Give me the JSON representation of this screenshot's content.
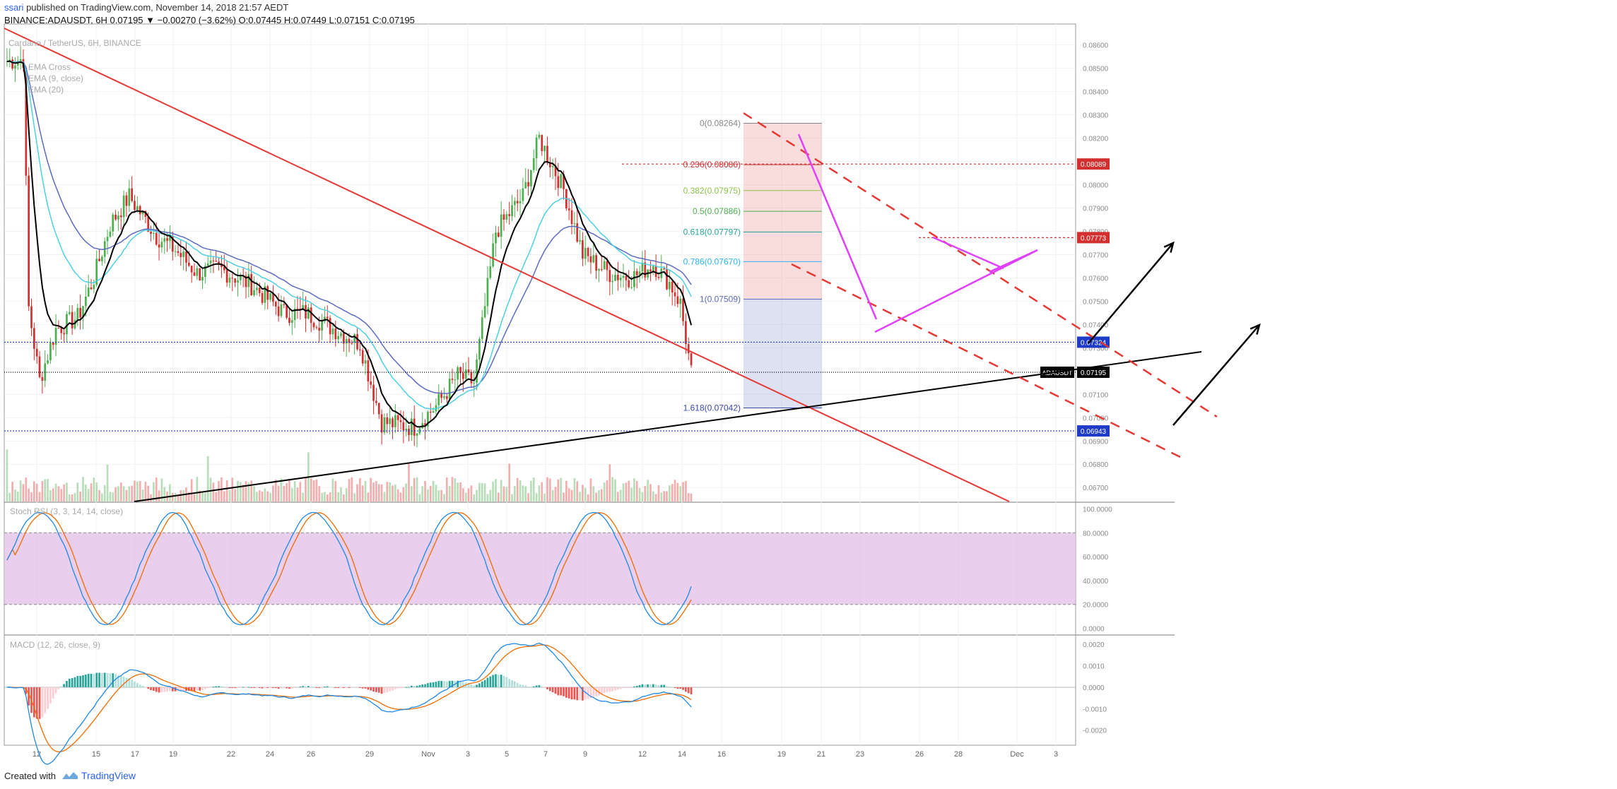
{
  "header": {
    "user": "ssari",
    "published": " published on TradingView.com, November 14, 2018 21:57 AEDT",
    "ohlc": "BINANCE:ADAUSDT, 6H  0.07195 ▼ −0.00270 (−3.62%) O:0.07445 H:0.07449 L:0.07151 C:0.07195"
  },
  "overlay_labels": {
    "symbol": "Cardano / TetherUS, 6H, BINANCE",
    "ema_cross": "EMA Cross",
    "ema9": "EMA (9, close)",
    "ema20": "EMA (20)",
    "stoch": "Stoch RSI (3, 3, 14, 14, close)",
    "macd": "MACD (12, 26, close, 9)"
  },
  "footer": {
    "created_with": "Created with",
    "brand": "TradingView"
  },
  "colors": {
    "up": "#4caf50",
    "down": "#d32f2f",
    "ema_fast": "#000000",
    "ema_cyan": "#4dd0e1",
    "ema_blue": "#5c6bc0",
    "trend_red": "#e53935",
    "pennant": "#e040fb",
    "stoch_band": "#e1bee7"
  },
  "chart_data": [
    {
      "type": "candlestick",
      "title": "Cardano / TetherUS, 6H, BINANCE",
      "y_axis_ticks": [
        "0.08600",
        "0.08500",
        "0.08400",
        "0.08300",
        "0.08200",
        "0.08100",
        "0.08000",
        "0.07900",
        "0.07800",
        "0.07700",
        "0.07600",
        "0.07500",
        "0.07400",
        "0.07300",
        "0.07100",
        "0.07000",
        "0.06900",
        "0.06800",
        "0.06700"
      ],
      "x_axis_ticks": [
        "12",
        "15",
        "17",
        "19",
        "22",
        "24",
        "26",
        "29",
        "Nov",
        "3",
        "5",
        "7",
        "9",
        "12",
        "14",
        "16",
        "19",
        "21",
        "23",
        "26",
        "28",
        "Dec",
        "3"
      ],
      "ylim": [
        0.0664,
        0.0869
      ],
      "price_labels": [
        {
          "value": 0.08089,
          "text": "0.08089",
          "color": "#d32f2f"
        },
        {
          "value": 0.07773,
          "text": "0.07773",
          "color": "#d32f2f"
        },
        {
          "value": 0.07324,
          "text": "0.07324",
          "color": "#1e3cc8"
        },
        {
          "value": 0.07195,
          "text": "0.07195",
          "tag": "ADAUSDT",
          "color": "#000000"
        },
        {
          "value": 0.06943,
          "text": "0.06943",
          "color": "#1e3cc8"
        }
      ],
      "fibonacci": [
        {
          "level": "0",
          "value": 0.08264,
          "label": "0(0.08264)"
        },
        {
          "level": "0.236",
          "value": 0.08086,
          "label": "0.236(0.08086)"
        },
        {
          "level": "0.382",
          "value": 0.07975,
          "label": "0.382(0.07975)"
        },
        {
          "level": "0.5",
          "value": 0.07886,
          "label": "0.5(0.07886)"
        },
        {
          "level": "0.618",
          "value": 0.07797,
          "label": "0.618(0.07797)"
        },
        {
          "level": "0.786",
          "value": 0.0767,
          "label": "0.786(0.07670)"
        },
        {
          "level": "1",
          "value": 0.07509,
          "label": "1(0.07509)"
        },
        {
          "level": "1.618",
          "value": 0.07042,
          "label": "1.618(0.07042)"
        }
      ]
    },
    {
      "type": "line",
      "title": "Stoch RSI (3, 3, 14, 14, close)",
      "y_axis_ticks": [
        "100.0000",
        "80.0000",
        "60.0000",
        "40.0000",
        "20.0000",
        "0.0000"
      ],
      "ylim": [
        -5,
        105
      ],
      "bands": [
        20,
        80
      ]
    },
    {
      "type": "bar",
      "title": "MACD (12, 26, close, 9)",
      "y_axis_ticks": [
        "0.0020",
        "0.0010",
        "0.0000",
        "-0.0010",
        "-0.0020"
      ],
      "ylim": [
        -0.0027,
        0.0024
      ]
    }
  ]
}
